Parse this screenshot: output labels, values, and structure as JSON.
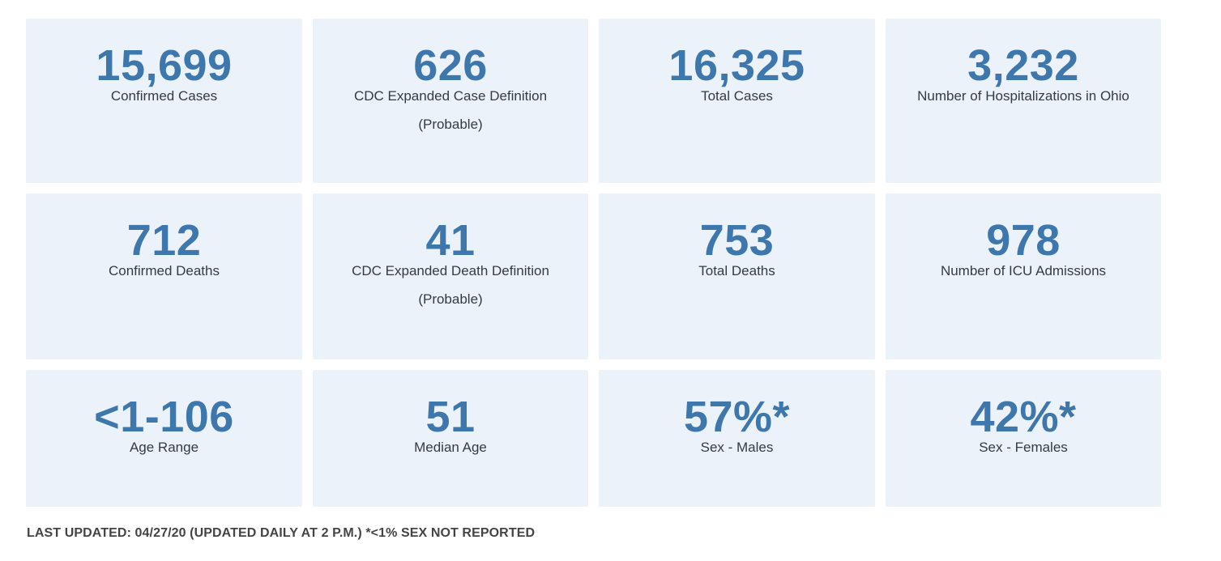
{
  "tiles": [
    {
      "value": "15,699",
      "label": "Confirmed Cases"
    },
    {
      "value": "626",
      "label": "CDC Expanded Case Definition (Probable)"
    },
    {
      "value": "16,325",
      "label": "Total Cases"
    },
    {
      "value": "3,232",
      "label": "Number of Hospitalizations in Ohio"
    },
    {
      "value": "712",
      "label": "Confirmed Deaths"
    },
    {
      "value": "41",
      "label": "CDC Expanded Death Definition (Probable)"
    },
    {
      "value": "753",
      "label": "Total Deaths"
    },
    {
      "value": "978",
      "label": "Number of ICU Admissions"
    },
    {
      "value": "<1-106",
      "label": "Age Range"
    },
    {
      "value": "51",
      "label": "Median Age"
    },
    {
      "value": "57%*",
      "label": "Sex - Males"
    },
    {
      "value": "42%*",
      "label": "Sex - Females"
    }
  ],
  "footer": {
    "text": "LAST UPDATED: 04/27/20 (UPDATED DAILY AT 2 P.M.) *<1% SEX NOT REPORTED"
  },
  "colors": {
    "tile_background": "#ebf2f9",
    "value_text": "#3e77ac",
    "label_text": "#333c44",
    "footer_text": "#444444"
  }
}
